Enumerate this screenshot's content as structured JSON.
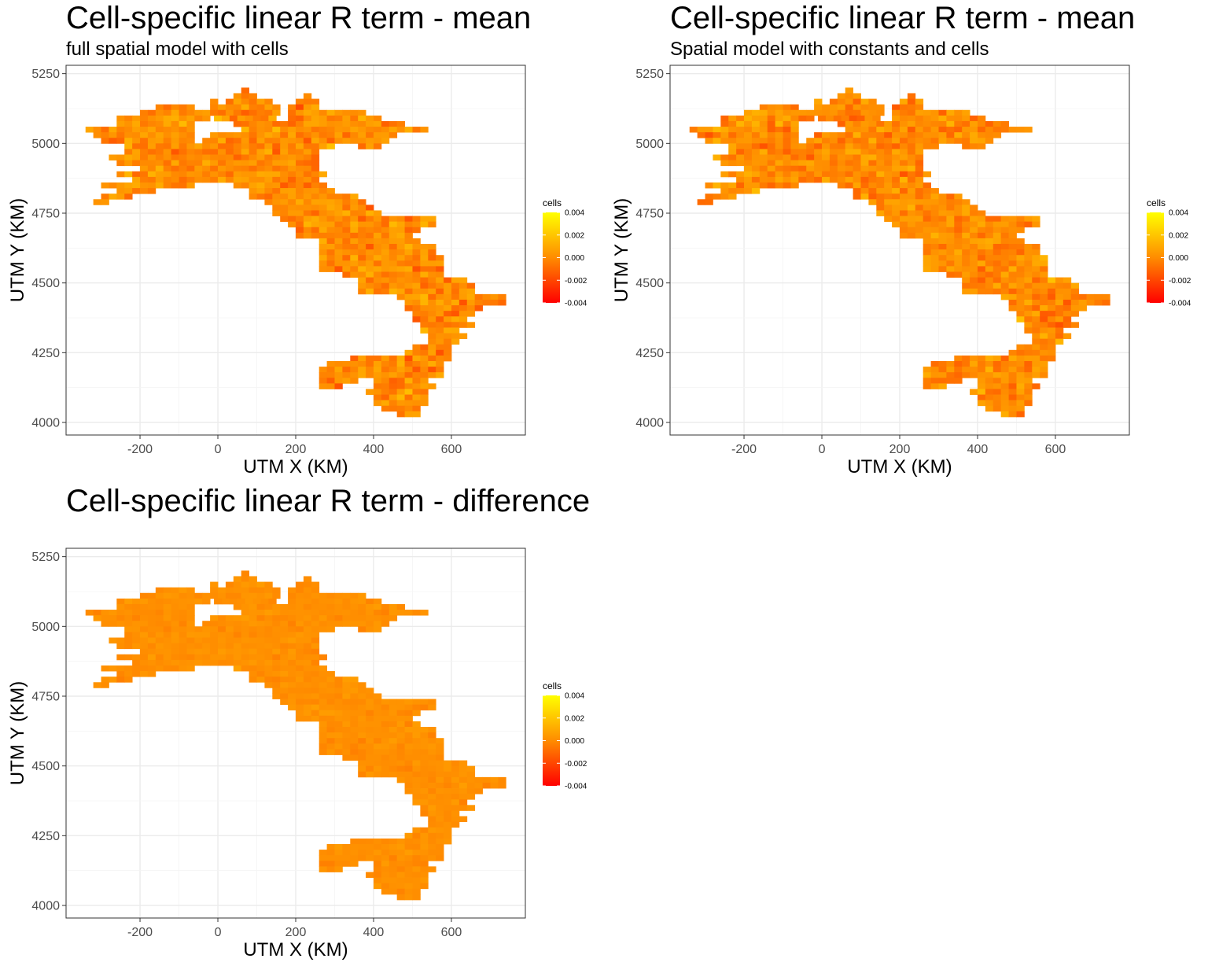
{
  "chart_data": [
    {
      "type": "heatmap",
      "title": "Cell-specific linear R term - mean",
      "subtitle": "full spatial model with cells",
      "xlabel": "UTM X (KM)",
      "ylabel": "UTM Y (KM)",
      "xlim": [
        -390,
        790
      ],
      "ylim": [
        3955,
        5280
      ],
      "xticks": [
        -200,
        0,
        200,
        400,
        600
      ],
      "yticks": [
        4000,
        4250,
        4500,
        4750,
        5000,
        5250
      ],
      "grid": true,
      "legend": {
        "title": "cells",
        "position": "right",
        "range": [
          -0.004,
          0.004
        ],
        "ticks": [
          "0.004",
          "0.002",
          "0.000",
          "-0.002",
          "-0.004"
        ],
        "colors": [
          "#ff0000",
          "#ff8c00",
          "#ffff00"
        ]
      },
      "na_color": "#808080",
      "cell_size_km": 20,
      "na_cells": [
        [
          120,
          4990
        ],
        [
          80,
          4930
        ],
        [
          140,
          4950
        ],
        [
          180,
          4950
        ],
        [
          200,
          4950
        ],
        [
          200,
          4770
        ],
        [
          220,
          4770
        ],
        [
          280,
          4730
        ],
        [
          360,
          4730
        ],
        [
          420,
          4550
        ],
        [
          580,
          4370
        ],
        [
          600,
          4350
        ],
        [
          480,
          4110
        ]
      ],
      "seed": 11,
      "variability": 1.0
    },
    {
      "type": "heatmap",
      "title": "Cell-specific linear R term - mean",
      "subtitle": "Spatial model with constants and cells",
      "xlabel": "UTM X (KM)",
      "ylabel": "UTM Y (KM)",
      "xlim": [
        -390,
        790
      ],
      "ylim": [
        3955,
        5280
      ],
      "xticks": [
        -200,
        0,
        200,
        400,
        600
      ],
      "yticks": [
        4000,
        4250,
        4500,
        4750,
        5000,
        5250
      ],
      "grid": true,
      "legend": {
        "title": "cells",
        "position": "right",
        "range": [
          -0.004,
          0.004
        ],
        "ticks": [
          "0.004",
          "0.002",
          "0.000",
          "-0.002",
          "-0.004"
        ],
        "colors": [
          "#ff0000",
          "#ff8c00",
          "#ffff00"
        ]
      },
      "na_color": "#808080",
      "cell_size_km": 20,
      "na_cells": [
        [
          220,
          5050
        ],
        [
          180,
          5010
        ],
        [
          80,
          4930
        ],
        [
          100,
          4930
        ],
        [
          140,
          4950
        ],
        [
          160,
          4930
        ],
        [
          180,
          4950
        ],
        [
          200,
          4950
        ],
        [
          300,
          4830
        ],
        [
          200,
          4770
        ],
        [
          220,
          4770
        ],
        [
          280,
          4730
        ],
        [
          320,
          4750
        ],
        [
          360,
          4730
        ],
        [
          340,
          4630
        ],
        [
          580,
          4370
        ],
        [
          600,
          4350
        ],
        [
          600,
          4310
        ],
        [
          480,
          4110
        ]
      ],
      "seed": 29,
      "variability": 1.0
    },
    {
      "type": "heatmap",
      "title": "Cell-specific linear R term - difference",
      "subtitle": "",
      "xlabel": "UTM X (KM)",
      "ylabel": "UTM Y (KM)",
      "xlim": [
        -390,
        790
      ],
      "ylim": [
        3955,
        5280
      ],
      "xticks": [
        -200,
        0,
        200,
        400,
        600
      ],
      "yticks": [
        4000,
        4250,
        4500,
        4750,
        5000,
        5250
      ],
      "grid": true,
      "legend": {
        "title": "cells",
        "position": "right",
        "range": [
          -0.004,
          0.004
        ],
        "ticks": [
          "0.004",
          "0.002",
          "0.000",
          "-0.002",
          "-0.004"
        ],
        "colors": [
          "#ff0000",
          "#ff8c00",
          "#ffff00"
        ]
      },
      "na_color": "#808080",
      "cell_size_km": 20,
      "na_cells": [],
      "seed": 47,
      "variability": 0.3
    }
  ]
}
